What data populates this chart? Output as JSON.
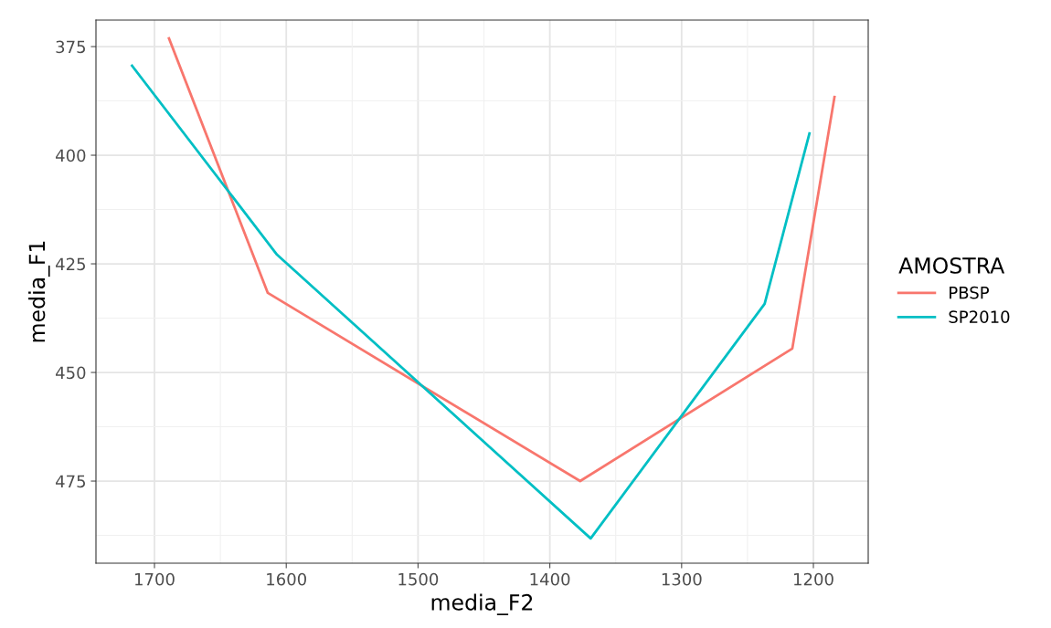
{
  "chart_data": {
    "type": "line",
    "xlabel": "media_F2",
    "ylabel": "media_F1",
    "legend_title": "AMOSTRA",
    "legend": "right",
    "xlim": [
      1744.4,
      1158.4
    ],
    "xticks": [
      1700,
      1600,
      1500,
      1400,
      1300,
      1200
    ],
    "ylim": [
      493.9,
      368.9
    ],
    "yticks": [
      375,
      400,
      425,
      450,
      475
    ],
    "grid": true,
    "series": [
      {
        "name": "PBSP",
        "color": "#f8766d",
        "x": [
          1689,
          1614,
          1377,
          1216,
          1184
        ],
        "values": [
          373.1,
          431.7,
          475.0,
          444.5,
          386.6
        ]
      },
      {
        "name": "SP2010",
        "color": "#00bfc4",
        "x": [
          1717,
          1607,
          1369,
          1237,
          1203
        ],
        "values": [
          379.4,
          422.9,
          488.2,
          434.2,
          395.0
        ]
      }
    ]
  }
}
